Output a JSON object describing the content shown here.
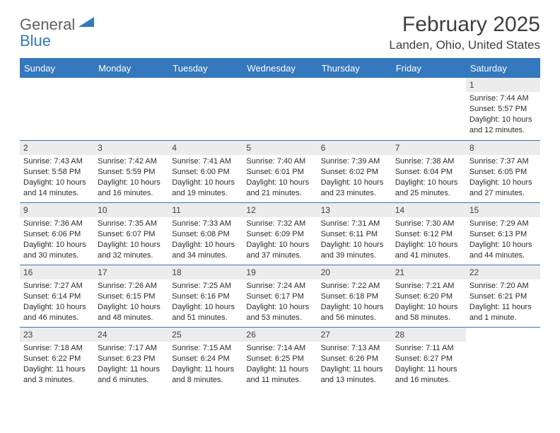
{
  "logo": {
    "word1": "General",
    "word2": "Blue"
  },
  "title": "February 2025",
  "subtitle": "Landen, Ohio, United States",
  "dayNames": [
    "Sunday",
    "Monday",
    "Tuesday",
    "Wednesday",
    "Thursday",
    "Friday",
    "Saturday"
  ],
  "colors": {
    "accent": "#3478bd",
    "headerText": "#ffffff",
    "dayNumBg": "#ececec",
    "bodyText": "#2b2b2b",
    "titleText": "#3f3f3f"
  },
  "weeks": [
    [
      {
        "n": "",
        "sr": "",
        "ss": "",
        "dl": ""
      },
      {
        "n": "",
        "sr": "",
        "ss": "",
        "dl": ""
      },
      {
        "n": "",
        "sr": "",
        "ss": "",
        "dl": ""
      },
      {
        "n": "",
        "sr": "",
        "ss": "",
        "dl": ""
      },
      {
        "n": "",
        "sr": "",
        "ss": "",
        "dl": ""
      },
      {
        "n": "",
        "sr": "",
        "ss": "",
        "dl": ""
      },
      {
        "n": "1",
        "sr": "Sunrise: 7:44 AM",
        "ss": "Sunset: 5:57 PM",
        "dl": "Daylight: 10 hours and 12 minutes."
      }
    ],
    [
      {
        "n": "2",
        "sr": "Sunrise: 7:43 AM",
        "ss": "Sunset: 5:58 PM",
        "dl": "Daylight: 10 hours and 14 minutes."
      },
      {
        "n": "3",
        "sr": "Sunrise: 7:42 AM",
        "ss": "Sunset: 5:59 PM",
        "dl": "Daylight: 10 hours and 16 minutes."
      },
      {
        "n": "4",
        "sr": "Sunrise: 7:41 AM",
        "ss": "Sunset: 6:00 PM",
        "dl": "Daylight: 10 hours and 19 minutes."
      },
      {
        "n": "5",
        "sr": "Sunrise: 7:40 AM",
        "ss": "Sunset: 6:01 PM",
        "dl": "Daylight: 10 hours and 21 minutes."
      },
      {
        "n": "6",
        "sr": "Sunrise: 7:39 AM",
        "ss": "Sunset: 6:02 PM",
        "dl": "Daylight: 10 hours and 23 minutes."
      },
      {
        "n": "7",
        "sr": "Sunrise: 7:38 AM",
        "ss": "Sunset: 6:04 PM",
        "dl": "Daylight: 10 hours and 25 minutes."
      },
      {
        "n": "8",
        "sr": "Sunrise: 7:37 AM",
        "ss": "Sunset: 6:05 PM",
        "dl": "Daylight: 10 hours and 27 minutes."
      }
    ],
    [
      {
        "n": "9",
        "sr": "Sunrise: 7:36 AM",
        "ss": "Sunset: 6:06 PM",
        "dl": "Daylight: 10 hours and 30 minutes."
      },
      {
        "n": "10",
        "sr": "Sunrise: 7:35 AM",
        "ss": "Sunset: 6:07 PM",
        "dl": "Daylight: 10 hours and 32 minutes."
      },
      {
        "n": "11",
        "sr": "Sunrise: 7:33 AM",
        "ss": "Sunset: 6:08 PM",
        "dl": "Daylight: 10 hours and 34 minutes."
      },
      {
        "n": "12",
        "sr": "Sunrise: 7:32 AM",
        "ss": "Sunset: 6:09 PM",
        "dl": "Daylight: 10 hours and 37 minutes."
      },
      {
        "n": "13",
        "sr": "Sunrise: 7:31 AM",
        "ss": "Sunset: 6:11 PM",
        "dl": "Daylight: 10 hours and 39 minutes."
      },
      {
        "n": "14",
        "sr": "Sunrise: 7:30 AM",
        "ss": "Sunset: 6:12 PM",
        "dl": "Daylight: 10 hours and 41 minutes."
      },
      {
        "n": "15",
        "sr": "Sunrise: 7:29 AM",
        "ss": "Sunset: 6:13 PM",
        "dl": "Daylight: 10 hours and 44 minutes."
      }
    ],
    [
      {
        "n": "16",
        "sr": "Sunrise: 7:27 AM",
        "ss": "Sunset: 6:14 PM",
        "dl": "Daylight: 10 hours and 46 minutes."
      },
      {
        "n": "17",
        "sr": "Sunrise: 7:26 AM",
        "ss": "Sunset: 6:15 PM",
        "dl": "Daylight: 10 hours and 48 minutes."
      },
      {
        "n": "18",
        "sr": "Sunrise: 7:25 AM",
        "ss": "Sunset: 6:16 PM",
        "dl": "Daylight: 10 hours and 51 minutes."
      },
      {
        "n": "19",
        "sr": "Sunrise: 7:24 AM",
        "ss": "Sunset: 6:17 PM",
        "dl": "Daylight: 10 hours and 53 minutes."
      },
      {
        "n": "20",
        "sr": "Sunrise: 7:22 AM",
        "ss": "Sunset: 6:18 PM",
        "dl": "Daylight: 10 hours and 56 minutes."
      },
      {
        "n": "21",
        "sr": "Sunrise: 7:21 AM",
        "ss": "Sunset: 6:20 PM",
        "dl": "Daylight: 10 hours and 58 minutes."
      },
      {
        "n": "22",
        "sr": "Sunrise: 7:20 AM",
        "ss": "Sunset: 6:21 PM",
        "dl": "Daylight: 11 hours and 1 minute."
      }
    ],
    [
      {
        "n": "23",
        "sr": "Sunrise: 7:18 AM",
        "ss": "Sunset: 6:22 PM",
        "dl": "Daylight: 11 hours and 3 minutes."
      },
      {
        "n": "24",
        "sr": "Sunrise: 7:17 AM",
        "ss": "Sunset: 6:23 PM",
        "dl": "Daylight: 11 hours and 6 minutes."
      },
      {
        "n": "25",
        "sr": "Sunrise: 7:15 AM",
        "ss": "Sunset: 6:24 PM",
        "dl": "Daylight: 11 hours and 8 minutes."
      },
      {
        "n": "26",
        "sr": "Sunrise: 7:14 AM",
        "ss": "Sunset: 6:25 PM",
        "dl": "Daylight: 11 hours and 11 minutes."
      },
      {
        "n": "27",
        "sr": "Sunrise: 7:13 AM",
        "ss": "Sunset: 6:26 PM",
        "dl": "Daylight: 11 hours and 13 minutes."
      },
      {
        "n": "28",
        "sr": "Sunrise: 7:11 AM",
        "ss": "Sunset: 6:27 PM",
        "dl": "Daylight: 11 hours and 16 minutes."
      },
      {
        "n": "",
        "sr": "",
        "ss": "",
        "dl": ""
      }
    ]
  ]
}
